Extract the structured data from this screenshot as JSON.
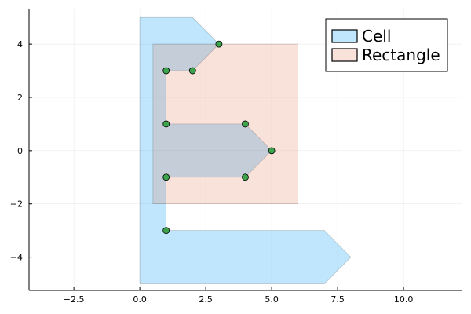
{
  "chart_data": {
    "type": "area",
    "xlim": [
      -4.2,
      12.2
    ],
    "ylim": [
      -5.25,
      5.3
    ],
    "x_ticks": [
      -2.5,
      0,
      2.5,
      5,
      7.5,
      10
    ],
    "x_tick_labels": [
      "−2.5",
      "0.0",
      "2.5",
      "5.0",
      "7.5",
      "10.0"
    ],
    "y_ticks": [
      -4,
      -2,
      0,
      2,
      4
    ],
    "y_tick_labels": [
      "−4",
      "−2",
      "0",
      "2",
      "4"
    ],
    "grid": true,
    "legend_position": "top-right",
    "series": [
      {
        "name": "Cell",
        "color": "#009af9",
        "fill_opacity": 0.25,
        "polygon": [
          [
            0,
            5
          ],
          [
            2,
            5
          ],
          [
            3,
            4
          ],
          [
            2,
            3
          ],
          [
            1,
            3
          ],
          [
            1,
            1
          ],
          [
            4,
            1
          ],
          [
            5,
            0
          ],
          [
            4,
            -1
          ],
          [
            1,
            -1
          ],
          [
            1,
            -3
          ],
          [
            7,
            -3
          ],
          [
            8,
            -4
          ],
          [
            7,
            -5
          ],
          [
            0,
            -5
          ]
        ]
      },
      {
        "name": "Rectangle",
        "color": "#e26f46",
        "fill_opacity": 0.2,
        "polygon": [
          [
            0.5,
            -2
          ],
          [
            6,
            -2
          ],
          [
            6,
            4
          ],
          [
            0.5,
            4
          ]
        ]
      }
    ],
    "points": {
      "color": "#3da44d",
      "values": [
        [
          3,
          4
        ],
        [
          2,
          3
        ],
        [
          1,
          3
        ],
        [
          1,
          1
        ],
        [
          4,
          1
        ],
        [
          5,
          0
        ],
        [
          4,
          -1
        ],
        [
          1,
          -1
        ],
        [
          1,
          -3
        ]
      ]
    }
  }
}
